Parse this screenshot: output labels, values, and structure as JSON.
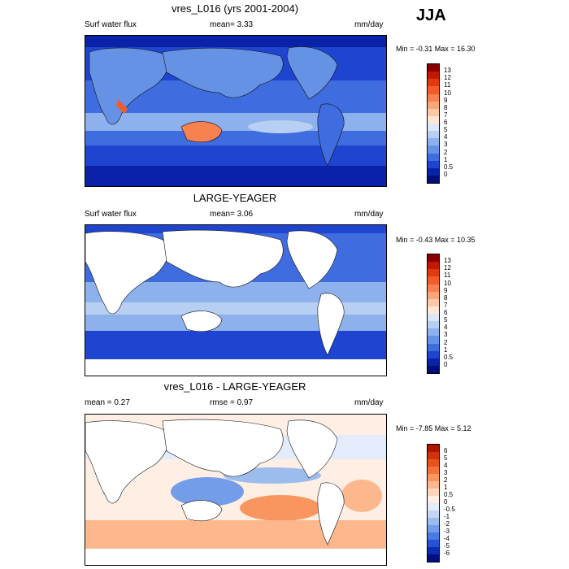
{
  "season": "JJA",
  "panels": [
    {
      "title": "vres_L016 (yrs 2001-2004)",
      "left_label": "Surf water flux",
      "stat_text": "mean=   3.33",
      "units": "mm/day",
      "minmax": "Min =  -0.31 Max =  16.30",
      "colorbar_ticks": [
        "13",
        "12",
        "11",
        "10",
        "9",
        "8",
        "7",
        "6",
        "5",
        "4",
        "3",
        "2",
        "1",
        "0.5",
        "0"
      ],
      "colorbar_colors": [
        "#8a0000",
        "#bf1a00",
        "#e23a10",
        "#f25c2a",
        "#f7814f",
        "#fba679",
        "#fdc8a6",
        "#fde6d4",
        "#dbe6f7",
        "#b7cff2",
        "#8db1ec",
        "#6692e6",
        "#3f6ddf",
        "#1f45d0",
        "#0a22a8",
        "#000e7a"
      ],
      "ocean_fill": "#3f6ddf",
      "land_fill": "#6692e6"
    },
    {
      "title": "LARGE-YEAGER",
      "left_label": "Surf water flux",
      "stat_text": "mean=   3.06",
      "units": "mm/day",
      "minmax": "Min =  -0.43 Max =  10.35",
      "colorbar_ticks": [
        "13",
        "12",
        "11",
        "10",
        "9",
        "8",
        "7",
        "6",
        "5",
        "4",
        "3",
        "2",
        "1",
        "0.5",
        "0"
      ],
      "colorbar_colors": [
        "#8a0000",
        "#bf1a00",
        "#e23a10",
        "#f25c2a",
        "#f7814f",
        "#fba679",
        "#fdc8a6",
        "#fde6d4",
        "#dbe6f7",
        "#b7cff2",
        "#8db1ec",
        "#6692e6",
        "#3f6ddf",
        "#1f45d0",
        "#0a22a8",
        "#000e7a"
      ],
      "ocean_fill": "#6692e6",
      "land_fill": "#ffffff"
    },
    {
      "title": "vres_L016 - LARGE-YEAGER",
      "left_label": "mean =   0.27",
      "stat_text": "rmse =   0.97",
      "units": "mm/day",
      "minmax": "Min =  -7.85 Max =   5.12",
      "colorbar_ticks": [
        "6",
        "5",
        "4",
        "3",
        "2",
        "1",
        "0.5",
        "0",
        "-0.5",
        "-1",
        "-2",
        "-3",
        "-4",
        "-5",
        "-6"
      ],
      "colorbar_colors": [
        "#b01500",
        "#d2330c",
        "#e8521d",
        "#f3733a",
        "#f99660",
        "#fcb78c",
        "#fdd5bc",
        "#feeee3",
        "#e3ecfa",
        "#c4d6f4",
        "#9cbcee",
        "#739de8",
        "#4b7be2",
        "#2653d4",
        "#0c2cb2",
        "#00107e"
      ],
      "ocean_fill": "#fde6d4",
      "land_fill": "#ffffff"
    }
  ]
}
